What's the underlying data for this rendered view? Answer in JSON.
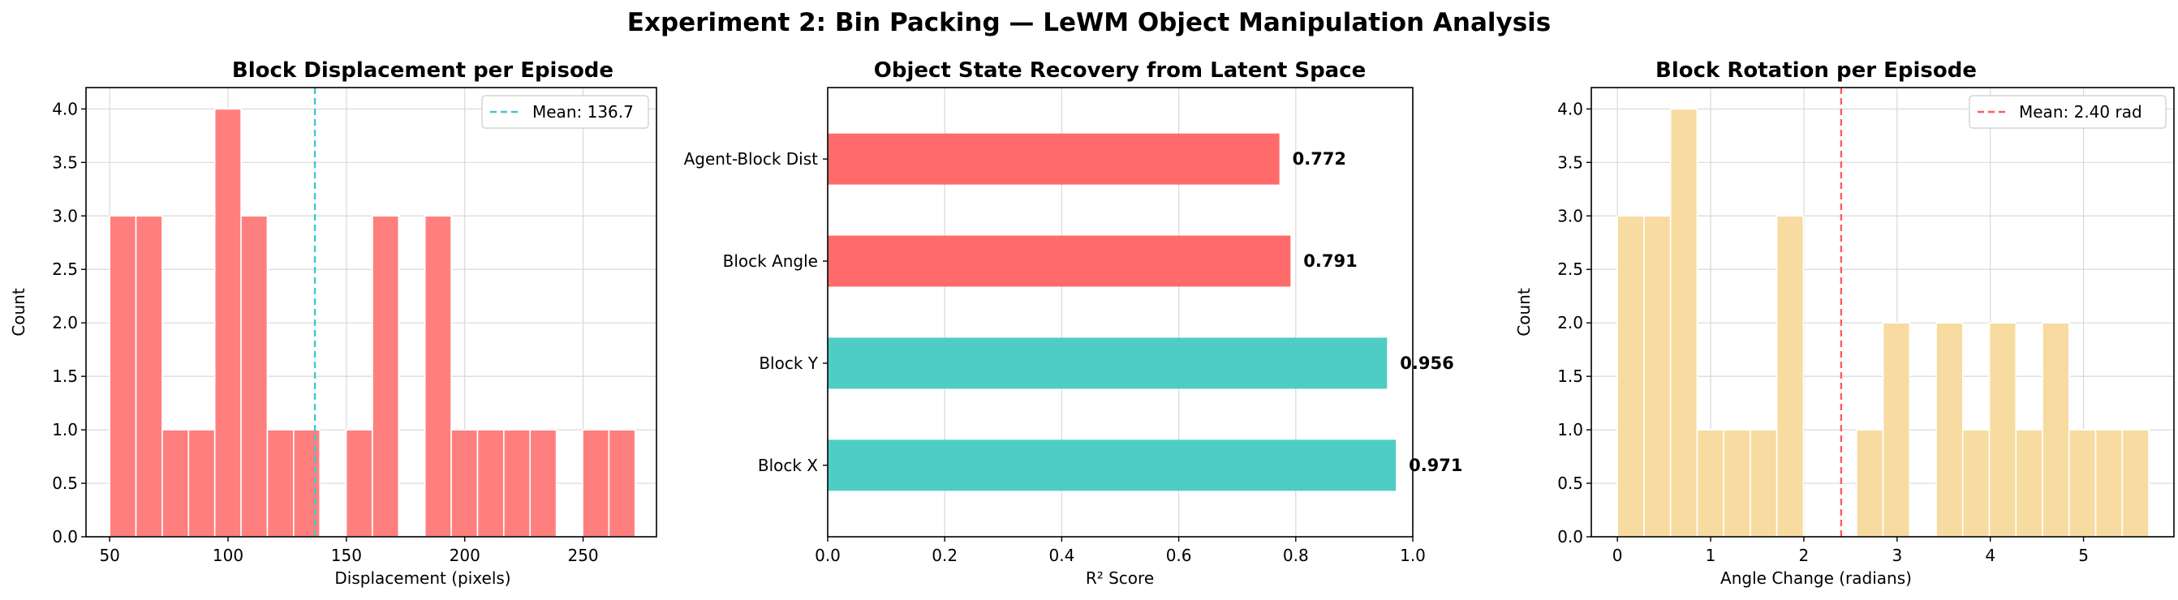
{
  "suptitle": "Experiment 2: Bin Packing — LeWM Object Manipulation Analysis",
  "colors": {
    "displacement_bar": "#ff7f7f",
    "mean_line_1": "#3ec9cf",
    "r2_low": "#ff6b6b",
    "r2_high": "#4ecdc4",
    "rotation_bar": "#f7dba0",
    "mean_line_3": "#ff5c5c"
  },
  "chart_data": [
    {
      "type": "bar",
      "subtype": "histogram",
      "title": "Block Displacement per Episode",
      "xlabel": "Displacement (pixels)",
      "ylabel": "Count",
      "xlim": [
        40,
        281
      ],
      "ylim": [
        0,
        4.2
      ],
      "xticks": [
        "50",
        "100",
        "150",
        "200",
        "250"
      ],
      "yticks": [
        "0.0",
        "0.5",
        "1.0",
        "1.5",
        "2.0",
        "2.5",
        "3.0",
        "3.5",
        "4.0"
      ],
      "grid": true,
      "bin_start": 50,
      "bin_width": 11.1,
      "counts": [
        3,
        3,
        1,
        1,
        4,
        3,
        1,
        1,
        0,
        1,
        3,
        0,
        3,
        1,
        1,
        1,
        1,
        0,
        1,
        1
      ],
      "mean_line": {
        "value": 136.7,
        "label": "Mean: 136.7"
      },
      "legend_position": "upper right"
    },
    {
      "type": "bar",
      "orientation": "horizontal",
      "title": "Object State Recovery from Latent Space",
      "xlabel": "R² Score",
      "ylabel": "",
      "xlim": [
        0,
        1
      ],
      "xticks": [
        "0.0",
        "0.2",
        "0.4",
        "0.6",
        "0.8",
        "1.0"
      ],
      "grid": true,
      "categories": [
        "Block X",
        "Block Y",
        "Block Angle",
        "Agent-Block Dist"
      ],
      "values": [
        0.971,
        0.956,
        0.791,
        0.772
      ],
      "value_labels": [
        "0.971",
        "0.956",
        "0.791",
        "0.772"
      ]
    },
    {
      "type": "bar",
      "subtype": "histogram",
      "title": "Block Rotation per Episode",
      "xlabel": "Angle Change (radians)",
      "ylabel": "Count",
      "xlim": [
        -0.28,
        5.97
      ],
      "ylim": [
        0,
        4.2
      ],
      "xticks": [
        "0",
        "1",
        "2",
        "3",
        "4",
        "5"
      ],
      "yticks": [
        "0.0",
        "0.5",
        "1.0",
        "1.5",
        "2.0",
        "2.5",
        "3.0",
        "3.5",
        "4.0"
      ],
      "grid": true,
      "bin_start": 0.0,
      "bin_width": 0.285,
      "counts": [
        3,
        3,
        4,
        1,
        1,
        1,
        3,
        0,
        0,
        1,
        2,
        0,
        2,
        1,
        2,
        1,
        2,
        1,
        1,
        1
      ],
      "mean_line": {
        "value": 2.4,
        "label": "Mean: 2.40 rad"
      },
      "legend_position": "upper right"
    }
  ]
}
